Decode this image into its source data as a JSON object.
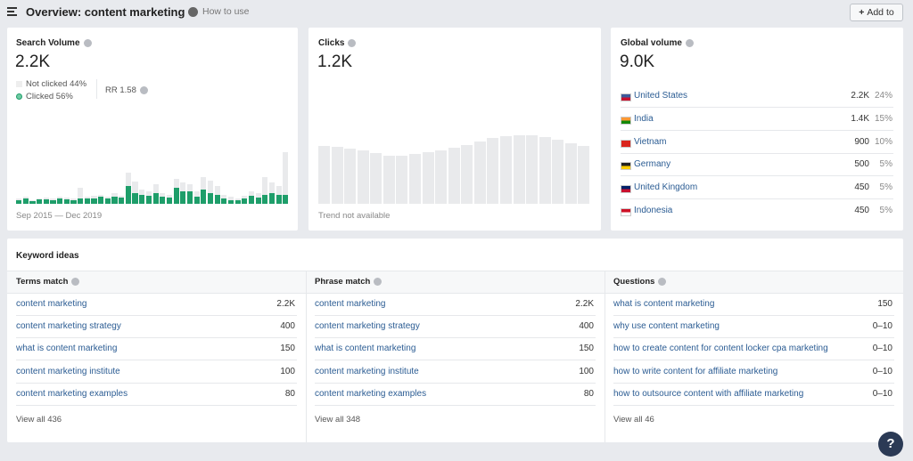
{
  "header": {
    "title": "Overview: content marketing",
    "help": "How to use",
    "button": "Add to"
  },
  "search_volume": {
    "label": "Search Volume",
    "value": "2.2K",
    "not_clicked": "Not clicked 44%",
    "clicked": "Clicked 56%",
    "rr": "RR 1.58",
    "date_range": "Sep 2015 — Dec 2019",
    "bars": {
      "total": [
        6,
        8,
        4,
        6,
        7,
        6,
        8,
        7,
        6,
        18,
        8,
        9,
        10,
        8,
        12,
        9,
        35,
        25,
        16,
        14,
        22,
        12,
        10,
        28,
        24,
        22,
        14,
        30,
        26,
        20,
        10,
        8,
        6,
        9,
        14,
        12,
        30,
        24,
        20,
        58
      ],
      "clicked": [
        4,
        6,
        3,
        5,
        5,
        4,
        6,
        5,
        4,
        6,
        6,
        6,
        8,
        6,
        8,
        7,
        20,
        12,
        10,
        9,
        12,
        8,
        7,
        18,
        14,
        14,
        8,
        16,
        12,
        10,
        6,
        4,
        4,
        6,
        9,
        7,
        10,
        12,
        10,
        10
      ]
    }
  },
  "clicks": {
    "label": "Clicks",
    "value": "1.2K",
    "note": "Trend not available",
    "bars": [
      65,
      64,
      62,
      60,
      57,
      54,
      54,
      56,
      58,
      60,
      63,
      66,
      70,
      74,
      76,
      77,
      77,
      75,
      72,
      68,
      65
    ]
  },
  "global_volume": {
    "label": "Global volume",
    "value": "9.0K",
    "countries": [
      {
        "name": "United States",
        "volume": "2.2K",
        "share": "24%"
      },
      {
        "name": "India",
        "volume": "1.4K",
        "share": "15%"
      },
      {
        "name": "Vietnam",
        "volume": "900",
        "share": "10%"
      },
      {
        "name": "Germany",
        "volume": "500",
        "share": "5%"
      },
      {
        "name": "United Kingdom",
        "volume": "450",
        "share": "5%"
      },
      {
        "name": "Indonesia",
        "volume": "450",
        "share": "5%"
      }
    ]
  },
  "keyword_ideas": {
    "title": "Keyword ideas",
    "columns": [
      {
        "title": "Terms match",
        "view_all": "View all 436",
        "rows": [
          {
            "keyword": "content marketing",
            "volume": "2.2K"
          },
          {
            "keyword": "content marketing strategy",
            "volume": "400"
          },
          {
            "keyword": "what is content marketing",
            "volume": "150"
          },
          {
            "keyword": "content marketing institute",
            "volume": "100"
          },
          {
            "keyword": "content marketing examples",
            "volume": "80"
          }
        ]
      },
      {
        "title": "Phrase match",
        "view_all": "View all 348",
        "rows": [
          {
            "keyword": "content marketing",
            "volume": "2.2K"
          },
          {
            "keyword": "content marketing strategy",
            "volume": "400"
          },
          {
            "keyword": "what is content marketing",
            "volume": "150"
          },
          {
            "keyword": "content marketing institute",
            "volume": "100"
          },
          {
            "keyword": "content marketing examples",
            "volume": "80"
          }
        ]
      },
      {
        "title": "Questions",
        "view_all": "View all 46",
        "rows": [
          {
            "keyword": "what is content marketing",
            "volume": "150"
          },
          {
            "keyword": "why use content marketing",
            "volume": "0–10"
          },
          {
            "keyword": "how to create content for content locker cpa marketing",
            "volume": "0–10"
          },
          {
            "keyword": "how to write content for affiliate marketing",
            "volume": "0–10"
          },
          {
            "keyword": "how to outsource content with affiliate marketing",
            "volume": "0–10"
          }
        ]
      }
    ]
  }
}
